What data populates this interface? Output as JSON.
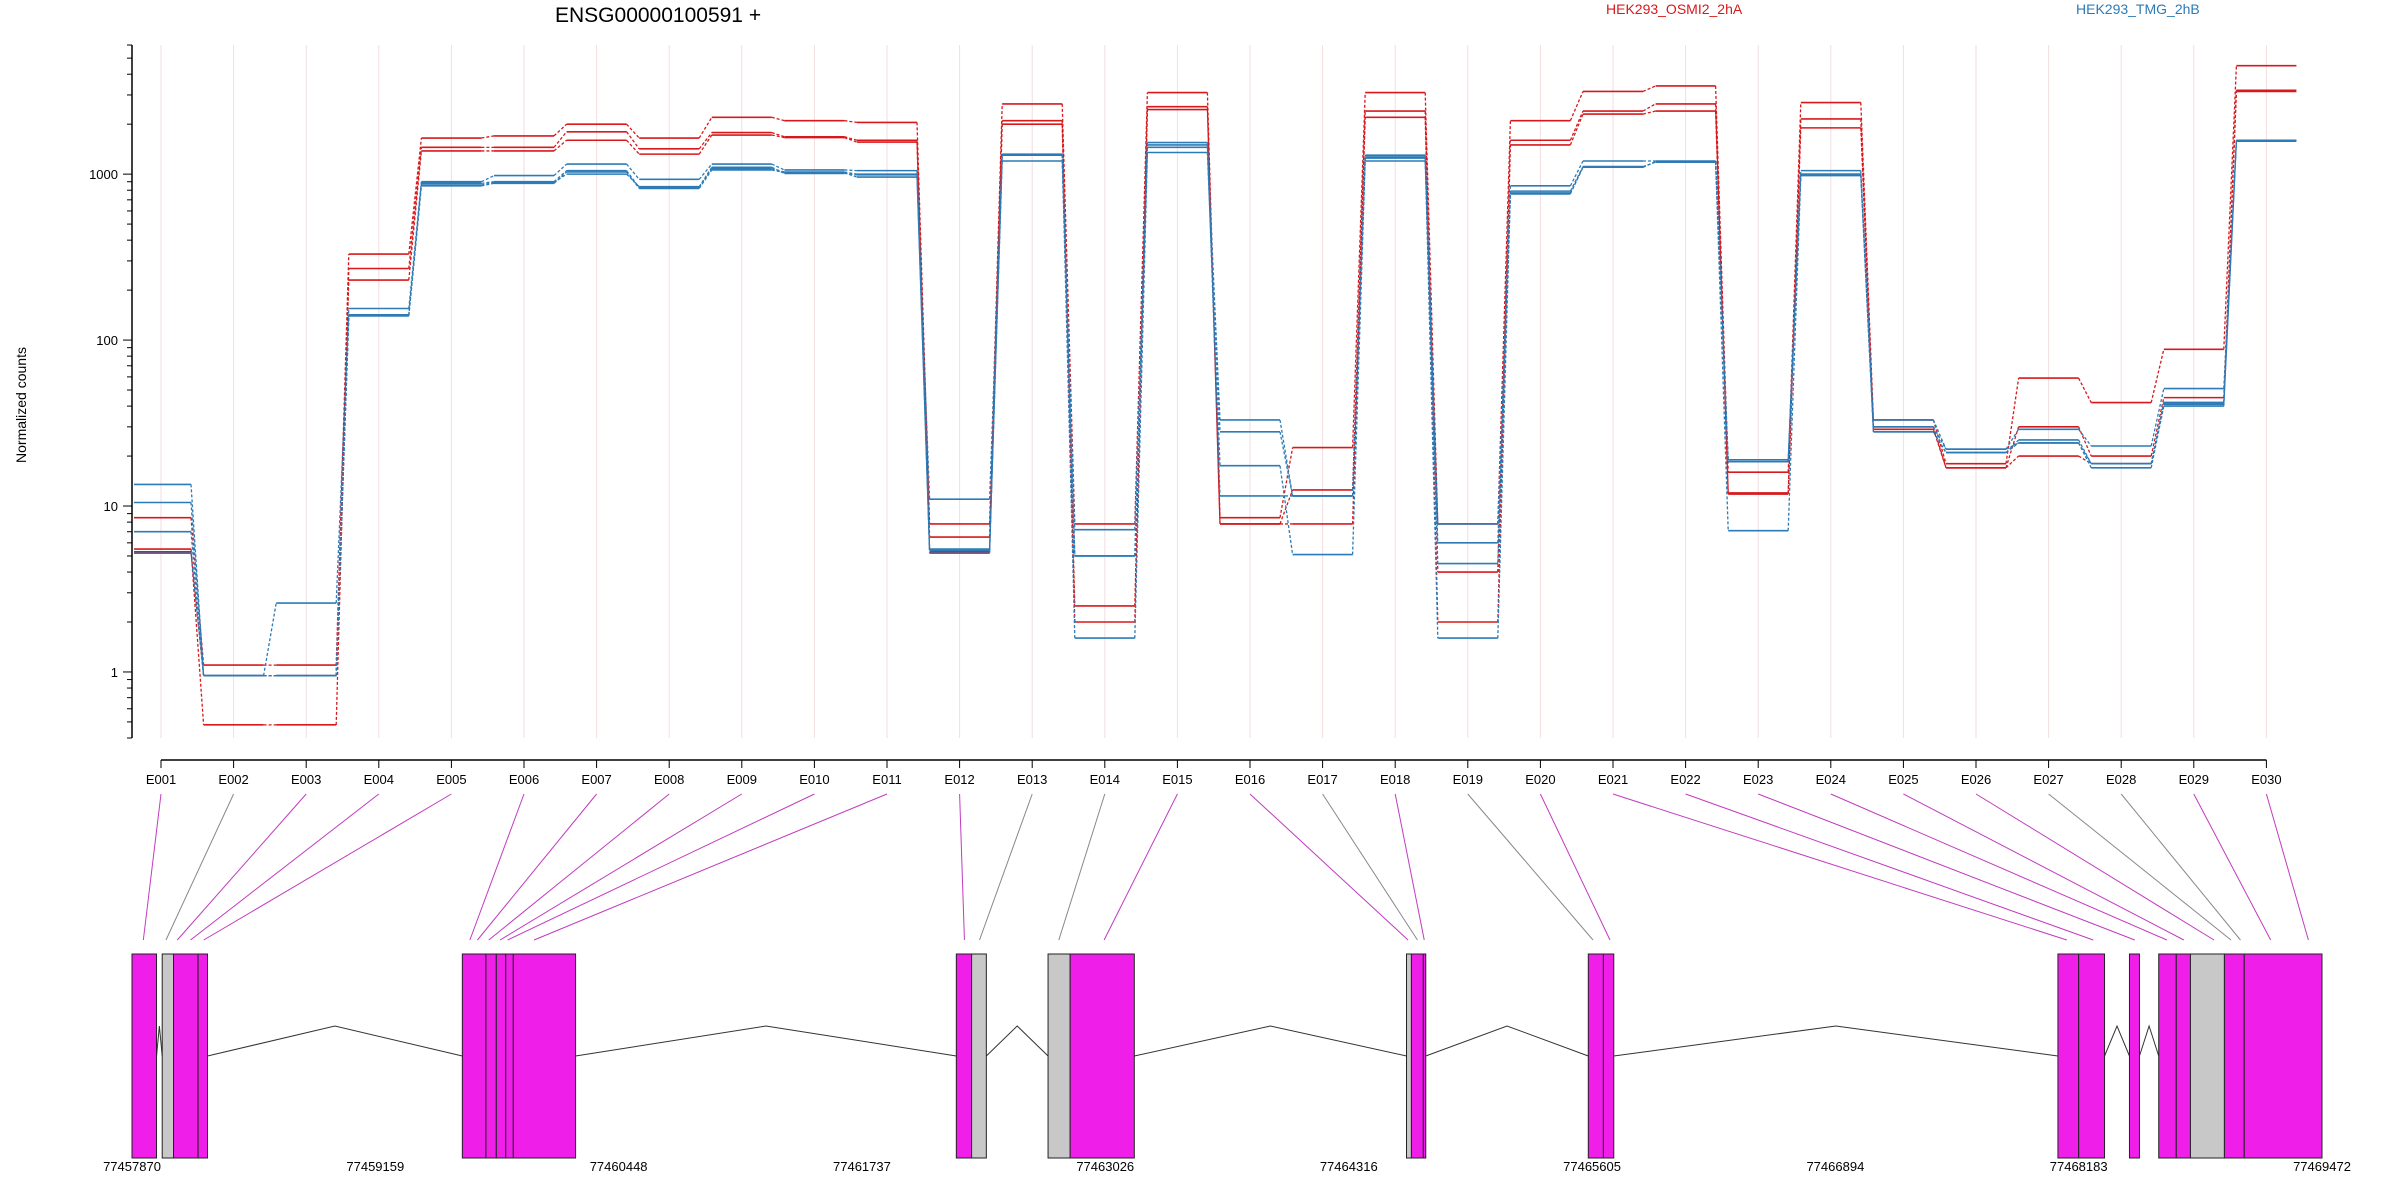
{
  "chart_data": {
    "type": "line",
    "title": "ENSG00000100591 +",
    "ylabel": "Normalized counts",
    "yscale": "log",
    "ylim": [
      0.4,
      6000
    ],
    "yticks": [
      "1",
      "10",
      "100",
      "1000"
    ],
    "categories": [
      "E001",
      "E002",
      "E003",
      "E004",
      "E005",
      "E006",
      "E007",
      "E008",
      "E009",
      "E010",
      "E011",
      "E012",
      "E013",
      "E014",
      "E015",
      "E016",
      "E017",
      "E018",
      "E019",
      "E020",
      "E021",
      "E022",
      "E023",
      "E024",
      "E025",
      "E026",
      "E027",
      "E028",
      "E029",
      "E030"
    ],
    "legend": [
      "HEK293_OSMI2_2hA",
      "HEK293_TMG_2hB"
    ],
    "legend_position": "top",
    "colors": {
      "red": "#d7191c",
      "blue": "#2c7bb6",
      "exon": "#f01ee9",
      "exon_gray": "#c8c8c8"
    },
    "series": [
      {
        "color": "red",
        "values": [
          8.5,
          1.1,
          1.1,
          330,
          1650,
          1700,
          2000,
          1650,
          2200,
          2100,
          2050,
          7.8,
          2650,
          7.8,
          3100,
          8.5,
          22.5,
          3100,
          7.8,
          2100,
          3150,
          3400,
          16,
          2700,
          33,
          18,
          59,
          42,
          88,
          4500
        ]
      },
      {
        "color": "red",
        "values": [
          5.5,
          0.48,
          0.48,
          270,
          1450,
          1450,
          1800,
          1420,
          1780,
          1680,
          1600,
          6.5,
          2100,
          2.5,
          2550,
          7.8,
          12.5,
          2400,
          4,
          1600,
          2400,
          2650,
          12,
          2150,
          30,
          17,
          30,
          20,
          45,
          3200
        ]
      },
      {
        "color": "red",
        "values": [
          5.3,
          0.95,
          0.95,
          230,
          1380,
          1380,
          1600,
          1320,
          1720,
          1660,
          1560,
          5.3,
          2000,
          2.0,
          2450,
          7.8,
          7.8,
          2200,
          2.0,
          1500,
          2300,
          2400,
          11.8,
          1900,
          29,
          17,
          20,
          18,
          42,
          3150
        ]
      },
      {
        "color": "blue",
        "values": [
          13.5,
          0.95,
          2.6,
          155,
          900,
          980,
          1150,
          930,
          1150,
          1060,
          1050,
          11,
          1320,
          7.2,
          1550,
          33,
          11.5,
          1300,
          7.8,
          850,
          1200,
          1200,
          19,
          1050,
          33,
          22,
          29,
          23,
          51,
          1600
        ]
      },
      {
        "color": "blue",
        "values": [
          10.5,
          0.95,
          0.95,
          142,
          880,
          900,
          1050,
          830,
          1080,
          1030,
          1000,
          5.5,
          1200,
          5.0,
          1450,
          28,
          11.5,
          1250,
          6.0,
          770,
          1100,
          1190,
          18.5,
          1000,
          28,
          21,
          25,
          18,
          42,
          1600
        ]
      },
      {
        "color": "blue",
        "values": [
          7,
          0.95,
          0.95,
          140,
          850,
          880,
          1030,
          820,
          1060,
          1020,
          960,
          5.2,
          1300,
          1.6,
          1350,
          17.5,
          5.1,
          1200,
          4.5,
          760,
          1100,
          1190,
          7.1,
          980,
          28,
          21,
          24,
          17,
          40,
          1580
        ]
      },
      {
        "color": "blue",
        "values": [
          5.2,
          0.95,
          0.95,
          140,
          860,
          890,
          1000,
          840,
          1100,
          1010,
          990,
          5.4,
          1310,
          5.0,
          1500,
          11.5,
          11.5,
          1270,
          1.6,
          790,
          1110,
          1180,
          18.5,
          1000,
          30,
          22,
          24,
          18,
          41,
          1590
        ]
      }
    ],
    "exon_highlighted": [
      true,
      false,
      true,
      true,
      true,
      true,
      true,
      true,
      true,
      true,
      true,
      true,
      false,
      false,
      true,
      true,
      false,
      true,
      false,
      true,
      true,
      true,
      true,
      true,
      true,
      true,
      false,
      false,
      true,
      true
    ],
    "gene_model": {
      "x_ticks": [
        "77457870",
        "77459159",
        "77460448",
        "77461737",
        "77463026",
        "77464316",
        "77465605",
        "77466894",
        "77468183",
        "77469472"
      ],
      "x_range": [
        77457870,
        77469472
      ],
      "exons": [
        {
          "start": 77457870,
          "end": 77458000,
          "color": "exon"
        },
        {
          "start": 77458030,
          "end": 77458090,
          "color": "exon_gray"
        },
        {
          "start": 77458090,
          "end": 77458220,
          "color": "exon"
        },
        {
          "start": 77458220,
          "end": 77458270,
          "color": "exon"
        },
        {
          "start": 77459620,
          "end": 77459745,
          "color": "exon"
        },
        {
          "start": 77459745,
          "end": 77459800,
          "color": "exon"
        },
        {
          "start": 77459800,
          "end": 77459850,
          "color": "exon"
        },
        {
          "start": 77459850,
          "end": 77459890,
          "color": "exon"
        },
        {
          "start": 77459890,
          "end": 77460220,
          "color": "exon"
        },
        {
          "start": 77462237,
          "end": 77462318,
          "color": "exon"
        },
        {
          "start": 77462318,
          "end": 77462396,
          "color": "exon_gray"
        },
        {
          "start": 77462723,
          "end": 77462840,
          "color": "exon_gray"
        },
        {
          "start": 77462840,
          "end": 77463180,
          "color": "exon"
        },
        {
          "start": 77464622,
          "end": 77464648,
          "color": "exon_gray"
        },
        {
          "start": 77464648,
          "end": 77464711,
          "color": "exon"
        },
        {
          "start": 77464711,
          "end": 77464724,
          "color": "exon"
        },
        {
          "start": 77465585,
          "end": 77465665,
          "color": "exon"
        },
        {
          "start": 77465665,
          "end": 77465720,
          "color": "exon"
        },
        {
          "start": 77468073,
          "end": 77468183,
          "color": "exon"
        },
        {
          "start": 77468183,
          "end": 77468320,
          "color": "exon"
        },
        {
          "start": 77468452,
          "end": 77468505,
          "color": "exon"
        },
        {
          "start": 77468607,
          "end": 77468700,
          "color": "exon"
        },
        {
          "start": 77468700,
          "end": 77468775,
          "color": "exon"
        },
        {
          "start": 77468775,
          "end": 77468955,
          "color": "exon_gray"
        },
        {
          "start": 77468955,
          "end": 77469060,
          "color": "exon"
        },
        {
          "start": 77469060,
          "end": 77469472,
          "color": "exon"
        }
      ],
      "introns": [
        [
          77458000,
          77458030
        ],
        [
          77458270,
          77459620
        ],
        [
          77460220,
          77462237
        ],
        [
          77462396,
          77462723
        ],
        [
          77463180,
          77464622
        ],
        [
          77464724,
          77465585
        ],
        [
          77465720,
          77468073
        ],
        [
          77468320,
          77468452
        ],
        [
          77468505,
          77468607
        ]
      ],
      "exon_bin_positions": [
        77457930,
        77458050,
        77458110,
        77458180,
        77458250,
        77459660,
        77459700,
        77459760,
        77459820,
        77459860,
        77460000,
        77462280,
        77462360,
        77462780,
        77463020,
        77464630,
        77464680,
        77464716,
        77465610,
        77465700,
        77468120,
        77468260,
        77468480,
        77468650,
        77468740,
        77468900,
        77468990,
        77469040,
        77469200,
        77469400
      ]
    }
  }
}
